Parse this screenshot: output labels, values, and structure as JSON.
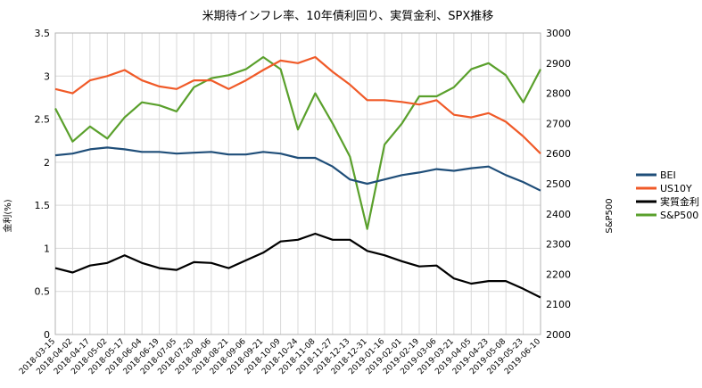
{
  "chart_data": {
    "type": "line",
    "title": "米期待インフレ率、10年債利回り、実質金利、SPX推移",
    "ylabel_left": "金利(%)",
    "ylabel_right": "S&P500",
    "ylim_left": [
      0,
      3.5
    ],
    "ylim_right": [
      2000,
      3000
    ],
    "yticks_left": [
      "0",
      "0.5",
      "1",
      "1.5",
      "2",
      "2.5",
      "3",
      "3.5"
    ],
    "yticks_right": [
      "2000",
      "2100",
      "2200",
      "2300",
      "2400",
      "2500",
      "2600",
      "2700",
      "2800",
      "2900",
      "3000"
    ],
    "grid": true,
    "legend_position": "right",
    "categories": [
      "2018-03-15",
      "2018-04-02",
      "2018-04-17",
      "2018-05-02",
      "2018-05-17",
      "2018-06-04",
      "2018-06-19",
      "2018-07-05",
      "2018-07-20",
      "2018-08-06",
      "2018-08-21",
      "2018-09-06",
      "2018-09-21",
      "2018-10-09",
      "2018-10-24",
      "2018-11-08",
      "2018-11-27",
      "2018-12-13",
      "2018-12-31",
      "2019-01-16",
      "2019-02-01",
      "2019-02-19",
      "2019-03-06",
      "2019-03-21",
      "2019-04-05",
      "2019-04-23",
      "2019-05-08",
      "2019-05-23",
      "2019-06-10"
    ],
    "tick_labels": [
      "2018-03-15",
      "2018-04-02",
      "2018-04-17",
      "2018-05-02",
      "2018-05-17",
      "2018-06-04",
      "2018-06-19",
      "2018-07-05",
      "2018-07-20",
      "2018-08-06",
      "2018-08-21",
      "2018-09-06",
      "2018-09-21",
      "2018-10-09",
      "2018-10-24",
      "2018-11-08",
      "2018-11-27",
      "2018-12-13",
      "2018-12-31",
      "2019-01-16",
      "2019-02-01",
      "2019-02-19",
      "2019-03-06",
      "2019-03-21",
      "2019-04-05",
      "2019-04-23",
      "2019-05-08",
      "2019-05-23",
      "2019-06-10"
    ],
    "series": [
      {
        "name": "BEI",
        "axis": "left",
        "color": "#1f4e79",
        "values": [
          2.08,
          2.1,
          2.15,
          2.17,
          2.15,
          2.12,
          2.12,
          2.1,
          2.11,
          2.12,
          2.09,
          2.09,
          2.12,
          2.1,
          2.05,
          2.05,
          1.95,
          1.8,
          1.75,
          1.8,
          1.85,
          1.88,
          1.92,
          1.9,
          1.93,
          1.95,
          1.85,
          1.77,
          1.67
        ]
      },
      {
        "name": "US10Y",
        "axis": "left",
        "color": "#f05a28",
        "values": [
          2.85,
          2.8,
          2.95,
          3.0,
          3.07,
          2.95,
          2.88,
          2.85,
          2.95,
          2.95,
          2.85,
          2.95,
          3.07,
          3.18,
          3.15,
          3.22,
          3.05,
          2.9,
          2.72,
          2.72,
          2.7,
          2.67,
          2.72,
          2.55,
          2.52,
          2.57,
          2.47,
          2.3,
          2.1
        ]
      },
      {
        "name": "実質金利",
        "axis": "left",
        "color": "#000000",
        "values": [
          0.77,
          0.72,
          0.8,
          0.83,
          0.92,
          0.83,
          0.77,
          0.75,
          0.84,
          0.83,
          0.77,
          0.86,
          0.95,
          1.08,
          1.1,
          1.17,
          1.1,
          1.1,
          0.97,
          0.92,
          0.85,
          0.79,
          0.8,
          0.65,
          0.59,
          0.62,
          0.62,
          0.53,
          0.43
        ]
      },
      {
        "name": "S&P500",
        "axis": "right",
        "color": "#5aa02c",
        "values": [
          2750,
          2640,
          2690,
          2650,
          2720,
          2770,
          2760,
          2740,
          2820,
          2850,
          2860,
          2880,
          2920,
          2880,
          2680,
          2800,
          2700,
          2590,
          2350,
          2630,
          2700,
          2790,
          2790,
          2820,
          2880,
          2900,
          2860,
          2770,
          2880
        ]
      }
    ]
  }
}
